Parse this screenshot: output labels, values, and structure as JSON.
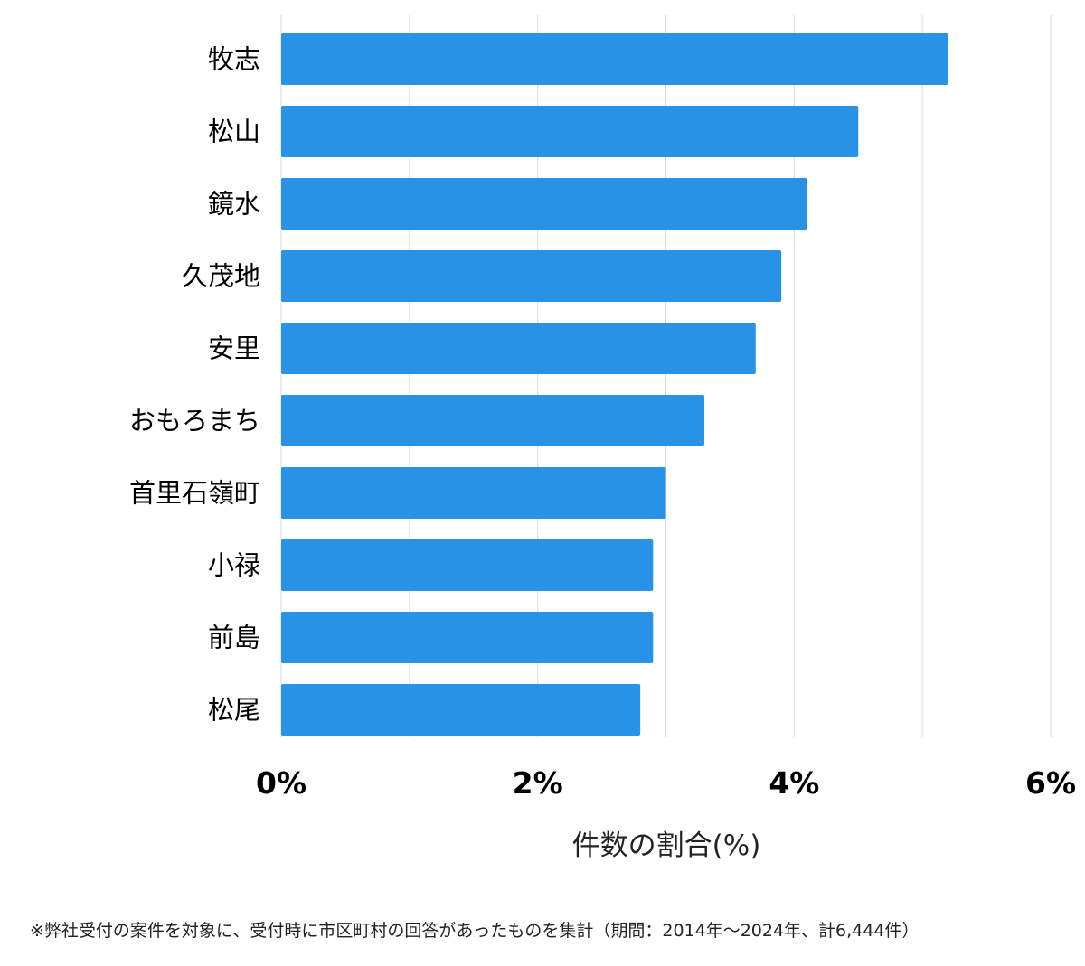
{
  "chart_data": {
    "type": "bar",
    "orientation": "horizontal",
    "categories": [
      "牧志",
      "松山",
      "鏡水",
      "久茂地",
      "安里",
      "おもろまち",
      "首里石嶺町",
      "小禄",
      "前島",
      "松尾"
    ],
    "values": [
      5.2,
      4.5,
      4.1,
      3.9,
      3.7,
      3.3,
      3.0,
      2.9,
      2.9,
      2.8
    ],
    "xlabel": "件数の割合(%)",
    "xlim": [
      0,
      6
    ],
    "xticks": [
      0,
      2,
      4,
      6
    ],
    "xtick_labels": [
      "0%",
      "2%",
      "4%",
      "6%"
    ],
    "grid": true,
    "bar_color": "#2893e6",
    "grid_color": "#d9d9d9"
  },
  "footnote": "※弊社受付の案件を対象に、受付時に市区町村の回答があったものを集計（期間：2014年〜2024年、計6,444件）"
}
